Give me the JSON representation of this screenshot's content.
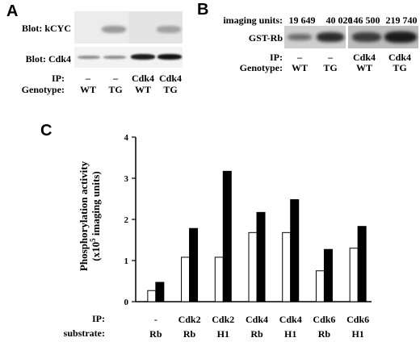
{
  "panelA": {
    "letter": "A",
    "blot_kcyc_label": "Blot: kCYC",
    "blot_cdk4_label": "Blot: Cdk4",
    "ip_label": "IP:",
    "genotype_label": "Genotype:",
    "lanes": [
      {
        "ip": "–",
        "genotype": "WT"
      },
      {
        "ip": "–",
        "genotype": "TG"
      },
      {
        "ip": "Cdk4",
        "genotype": "WT"
      },
      {
        "ip": "Cdk4",
        "genotype": "TG"
      }
    ]
  },
  "panelB": {
    "letter": "B",
    "imaging_units_label": "imaging units:",
    "blot_label": "GST-Rb",
    "ip_label": "IP:",
    "genotype_label": "Genotype:",
    "lanes": [
      {
        "units": "19 649",
        "ip": "–",
        "genotype": "WT"
      },
      {
        "units": "40 020",
        "ip": "–",
        "genotype": "TG"
      },
      {
        "units": "146 500",
        "ip": "Cdk4",
        "genotype": "WT"
      },
      {
        "units": "219 740",
        "ip": "Cdk4",
        "genotype": "TG"
      }
    ]
  },
  "panelC": {
    "letter": "C",
    "ip_row_label": "IP:",
    "substrate_row_label": "substrate:",
    "ylabel_line1": "Phosphorylation activity",
    "ylabel_line2_pre": "(x10",
    "ylabel_line2_sup": "5",
    "ylabel_line2_post": " imaging units)"
  },
  "chart_data": {
    "type": "bar",
    "title": "",
    "xlabel": "",
    "ylabel": "Phosphorylation activity (x10^5 imaging units)",
    "ylim": [
      0,
      4
    ],
    "yticks": [
      "0",
      "1",
      "2",
      "3",
      "4"
    ],
    "categories": [
      {
        "ip": "-",
        "substrate": "Rb"
      },
      {
        "ip": "Cdk2",
        "substrate": "Rb"
      },
      {
        "ip": "Cdk2",
        "substrate": "H1"
      },
      {
        "ip": "Cdk4",
        "substrate": "Rb"
      },
      {
        "ip": "Cdk4",
        "substrate": "H1"
      },
      {
        "ip": "Cdk6",
        "substrate": "Rb"
      },
      {
        "ip": "Cdk6",
        "substrate": "H1"
      }
    ],
    "series": [
      {
        "fill": "#ffffff",
        "values": [
          0.27,
          1.08,
          1.08,
          1.68,
          1.68,
          0.75,
          1.3
        ]
      },
      {
        "fill": "#000000",
        "values": [
          0.47,
          1.78,
          3.17,
          2.17,
          2.48,
          1.27,
          1.83
        ]
      }
    ],
    "grid": false,
    "legend": "none"
  }
}
